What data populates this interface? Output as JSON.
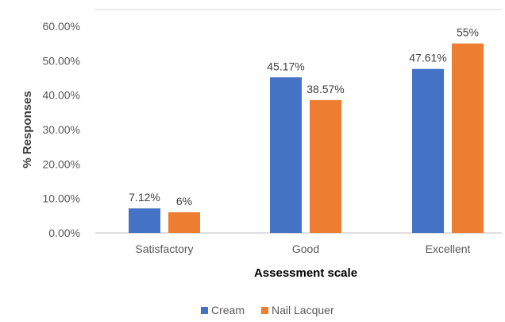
{
  "chart_data": {
    "type": "bar",
    "title": "",
    "xlabel": "Assessment scale",
    "ylabel": "% Responses",
    "categories": [
      "Satisfactory",
      "Good",
      "Excellent"
    ],
    "series": [
      {
        "name": "Cream",
        "values": [
          7.12,
          45.17,
          47.61
        ],
        "labels": [
          "7.12%",
          "45.17%",
          "47.61%"
        ],
        "color": "#4472C4"
      },
      {
        "name": "Nail Lacquer",
        "values": [
          6,
          38.57,
          55
        ],
        "labels": [
          "6%",
          "38.57%",
          "55%"
        ],
        "color": "#ED7D31"
      }
    ],
    "yticks": [
      0,
      10,
      20,
      30,
      40,
      50,
      60
    ],
    "ytick_labels": [
      "0.00%",
      "10.00%",
      "20.00%",
      "30.00%",
      "40.00%",
      "50.00%",
      "60.00%"
    ],
    "ylim": [
      0,
      60
    ],
    "grid": false,
    "legend_position": "bottom"
  }
}
